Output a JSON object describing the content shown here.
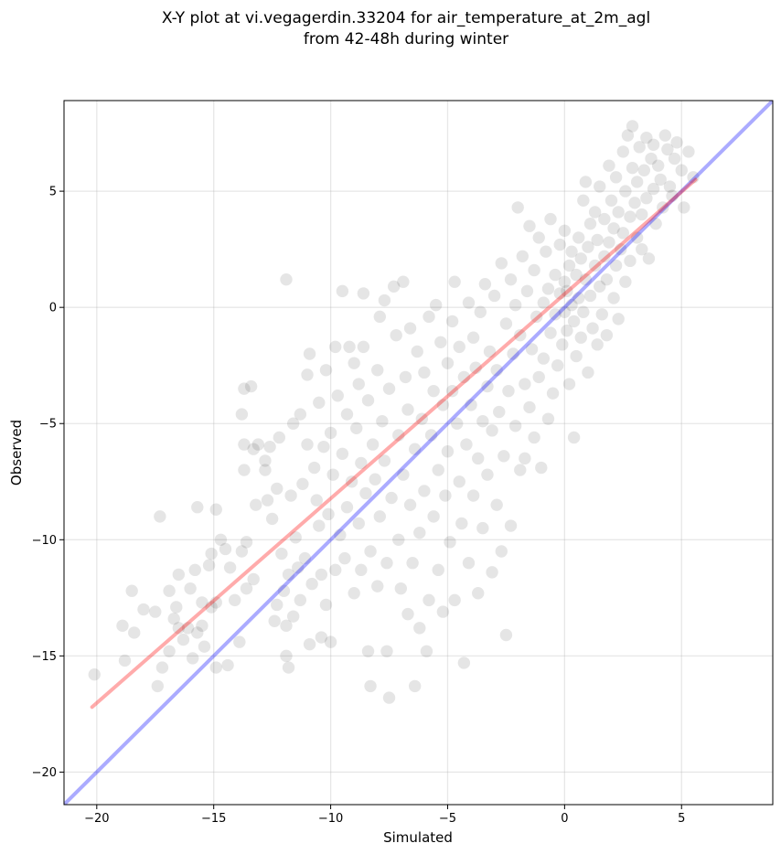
{
  "chart_data": {
    "type": "scatter",
    "title_lines": [
      "X-Y plot at vi.vegagerdin.33204 for air_temperature_at_2m_agl",
      "from 42-48h during winter"
    ],
    "xlabel": "Simulated",
    "ylabel": "Observed",
    "xlim": [
      -21.4,
      8.9
    ],
    "ylim": [
      -21.4,
      8.9
    ],
    "xticks": [
      -20,
      -15,
      -10,
      -5,
      0,
      5
    ],
    "yticks": [
      -20,
      -15,
      -10,
      -5,
      0,
      5
    ],
    "x_tick_labels": [
      "−20",
      "−15",
      "−10",
      "−5",
      "0",
      "5"
    ],
    "y_tick_labels": [
      "−20",
      "−15",
      "−10",
      "−5",
      "0",
      "5"
    ],
    "grid": true,
    "point_color": "#000000",
    "point_alpha": 0.1,
    "reference_line": {
      "x": [
        -21.4,
        8.9
      ],
      "y": [
        -21.4,
        8.9
      ],
      "color": "#0000ff"
    },
    "fit_line": {
      "x": [
        -20.2,
        5.6
      ],
      "y": [
        -17.2,
        5.5
      ],
      "color": "#ff0000"
    },
    "points": [
      [
        -20.1,
        -15.8
      ],
      [
        -18.9,
        -13.7
      ],
      [
        -18.8,
        -15.2
      ],
      [
        -18.5,
        -12.2
      ],
      [
        -18.4,
        -14.0
      ],
      [
        -18.0,
        -13.0
      ],
      [
        -17.5,
        -13.1
      ],
      [
        -17.4,
        -16.3
      ],
      [
        -17.3,
        -9.0
      ],
      [
        -17.2,
        -15.5
      ],
      [
        -16.9,
        -14.8
      ],
      [
        -16.7,
        -13.4
      ],
      [
        -16.9,
        -12.2
      ],
      [
        -16.6,
        -12.9
      ],
      [
        -16.5,
        -13.8
      ],
      [
        -16.5,
        -11.5
      ],
      [
        -16.3,
        -14.3
      ],
      [
        -16.1,
        -13.8
      ],
      [
        -16.0,
        -12.1
      ],
      [
        -15.9,
        -15.1
      ],
      [
        -15.8,
        -11.3
      ],
      [
        -15.7,
        -14.0
      ],
      [
        -15.7,
        -8.6
      ],
      [
        -15.5,
        -13.7
      ],
      [
        -15.5,
        -12.7
      ],
      [
        -15.4,
        -14.6
      ],
      [
        -15.2,
        -11.1
      ],
      [
        -15.1,
        -12.9
      ],
      [
        -15.1,
        -10.6
      ],
      [
        -14.9,
        -12.7
      ],
      [
        -14.9,
        -15.5
      ],
      [
        -14.9,
        -8.7
      ],
      [
        -14.7,
        -10.0
      ],
      [
        -14.5,
        -10.4
      ],
      [
        -14.4,
        -15.4
      ],
      [
        -14.3,
        -11.2
      ],
      [
        -14.1,
        -12.6
      ],
      [
        -13.9,
        -14.4
      ],
      [
        -13.8,
        -4.6
      ],
      [
        -13.8,
        -10.5
      ],
      [
        -13.7,
        -5.9
      ],
      [
        -13.7,
        -7.0
      ],
      [
        -13.7,
        -3.5
      ],
      [
        -13.6,
        -12.1
      ],
      [
        -13.6,
        -10.1
      ],
      [
        -13.4,
        -3.4
      ],
      [
        -13.3,
        -11.7
      ],
      [
        -13.3,
        -6.1
      ],
      [
        -13.2,
        -8.5
      ],
      [
        -13.1,
        -5.9
      ],
      [
        -12.8,
        -6.6
      ],
      [
        -12.8,
        -7.0
      ],
      [
        -12.7,
        -8.3
      ],
      [
        -12.6,
        -6.0
      ],
      [
        -12.5,
        -9.1
      ],
      [
        -12.4,
        -13.5
      ],
      [
        -12.3,
        -12.8
      ],
      [
        -12.3,
        -7.8
      ],
      [
        -12.2,
        -5.6
      ],
      [
        -12.1,
        -10.6
      ],
      [
        -12.0,
        -12.2
      ],
      [
        -11.9,
        -15.0
      ],
      [
        -11.9,
        -13.7
      ],
      [
        -11.9,
        1.2
      ],
      [
        -11.8,
        -15.5
      ],
      [
        -11.8,
        -11.5
      ],
      [
        -11.7,
        -8.1
      ],
      [
        -11.6,
        -13.3
      ],
      [
        -11.6,
        -5.0
      ],
      [
        -11.5,
        -9.9
      ],
      [
        -11.4,
        -11.2
      ],
      [
        -11.3,
        -12.6
      ],
      [
        -11.3,
        -4.6
      ],
      [
        -11.2,
        -7.6
      ],
      [
        -11.1,
        -10.8
      ],
      [
        -11.0,
        -5.9
      ],
      [
        -11.0,
        -2.9
      ],
      [
        -10.9,
        -14.5
      ],
      [
        -10.9,
        -2.0
      ],
      [
        -10.8,
        -11.9
      ],
      [
        -10.7,
        -6.9
      ],
      [
        -10.6,
        -8.3
      ],
      [
        -10.5,
        -4.1
      ],
      [
        -10.5,
        -9.4
      ],
      [
        -10.4,
        -11.5
      ],
      [
        -10.4,
        -14.2
      ],
      [
        -10.3,
        -6.0
      ],
      [
        -10.2,
        -2.7
      ],
      [
        -10.2,
        -12.8
      ],
      [
        -10.1,
        -8.9
      ],
      [
        -10.0,
        -5.4
      ],
      [
        -10.0,
        -14.4
      ],
      [
        -9.9,
        -7.2
      ],
      [
        -9.8,
        -11.3
      ],
      [
        -9.8,
        -1.7
      ],
      [
        -9.7,
        -3.8
      ],
      [
        -9.6,
        -9.8
      ],
      [
        -9.5,
        -6.3
      ],
      [
        -9.5,
        0.7
      ],
      [
        -9.4,
        -10.8
      ],
      [
        -9.3,
        -4.6
      ],
      [
        -9.3,
        -8.6
      ],
      [
        -9.2,
        -1.7
      ],
      [
        -9.1,
        -7.5
      ],
      [
        -9.0,
        -12.3
      ],
      [
        -9.0,
        -2.4
      ],
      [
        -8.9,
        -5.2
      ],
      [
        -8.8,
        -9.3
      ],
      [
        -8.8,
        -3.3
      ],
      [
        -8.7,
        -11.3
      ],
      [
        -8.7,
        -6.7
      ],
      [
        -8.6,
        0.6
      ],
      [
        -8.6,
        -1.7
      ],
      [
        -8.5,
        -8.0
      ],
      [
        -8.4,
        -14.8
      ],
      [
        -8.4,
        -4.0
      ],
      [
        -8.3,
        -10.5
      ],
      [
        -8.3,
        -16.3
      ],
      [
        -8.2,
        -5.9
      ],
      [
        -8.1,
        -7.4
      ],
      [
        -8.0,
        -2.7
      ],
      [
        -8.0,
        -12.0
      ],
      [
        -7.9,
        -9.0
      ],
      [
        -7.9,
        -0.4
      ],
      [
        -7.8,
        -4.9
      ],
      [
        -7.7,
        -6.6
      ],
      [
        -7.7,
        0.3
      ],
      [
        -7.6,
        -11.0
      ],
      [
        -7.6,
        -14.8
      ],
      [
        -7.5,
        -3.5
      ],
      [
        -7.5,
        -16.8
      ],
      [
        -7.4,
        -8.2
      ],
      [
        -7.3,
        0.9
      ],
      [
        -7.2,
        -1.2
      ],
      [
        -7.1,
        -5.5
      ],
      [
        -7.1,
        -10.0
      ],
      [
        -7.0,
        -12.1
      ],
      [
        -6.9,
        -7.2
      ],
      [
        -6.9,
        1.1
      ],
      [
        -6.8,
        -3.0
      ],
      [
        -6.7,
        -13.2
      ],
      [
        -6.7,
        -4.4
      ],
      [
        -6.6,
        -8.5
      ],
      [
        -6.6,
        -0.9
      ],
      [
        -6.5,
        -11.0
      ],
      [
        -6.4,
        -6.1
      ],
      [
        -6.4,
        -16.3
      ],
      [
        -6.3,
        -1.9
      ],
      [
        -6.2,
        -9.7
      ],
      [
        -6.2,
        -13.8
      ],
      [
        -6.1,
        -4.8
      ],
      [
        -6.0,
        -2.8
      ],
      [
        -6.0,
        -7.9
      ],
      [
        -5.9,
        -14.8
      ],
      [
        -5.8,
        -0.4
      ],
      [
        -5.8,
        -12.6
      ],
      [
        -5.7,
        -5.5
      ],
      [
        -5.6,
        -3.6
      ],
      [
        -5.6,
        -9.0
      ],
      [
        -5.5,
        0.1
      ],
      [
        -5.4,
        -7.0
      ],
      [
        -5.4,
        -11.3
      ],
      [
        -5.3,
        -1.5
      ],
      [
        -5.2,
        -4.2
      ],
      [
        -5.2,
        -13.1
      ],
      [
        -5.1,
        -8.1
      ],
      [
        -5.0,
        -2.4
      ],
      [
        -5.0,
        -6.2
      ],
      [
        -4.9,
        -10.1
      ],
      [
        -4.8,
        -0.6
      ],
      [
        -4.8,
        -3.6
      ],
      [
        -4.7,
        -12.6
      ],
      [
        -4.7,
        1.1
      ],
      [
        -4.6,
        -5.0
      ],
      [
        -4.5,
        -7.5
      ],
      [
        -4.5,
        -1.7
      ],
      [
        -4.4,
        -9.3
      ],
      [
        -4.3,
        -3.0
      ],
      [
        -4.3,
        -15.3
      ],
      [
        -4.2,
        -5.9
      ],
      [
        -4.1,
        0.2
      ],
      [
        -4.1,
        -11.0
      ],
      [
        -4.0,
        -4.2
      ],
      [
        -3.9,
        -8.1
      ],
      [
        -3.9,
        -1.3
      ],
      [
        -3.8,
        -2.6
      ],
      [
        -3.7,
        -12.3
      ],
      [
        -3.7,
        -6.5
      ],
      [
        -3.6,
        -0.2
      ],
      [
        -3.5,
        -4.9
      ],
      [
        -3.5,
        -9.5
      ],
      [
        -3.4,
        1.0
      ],
      [
        -3.3,
        -3.4
      ],
      [
        -3.3,
        -7.2
      ],
      [
        -3.2,
        -1.9
      ],
      [
        -3.1,
        -11.4
      ],
      [
        -3.1,
        -5.3
      ],
      [
        -3.0,
        0.5
      ],
      [
        -2.9,
        -8.5
      ],
      [
        -2.9,
        -2.7
      ],
      [
        -2.8,
        -4.5
      ],
      [
        -2.7,
        1.9
      ],
      [
        -2.7,
        -10.5
      ],
      [
        -2.6,
        -6.4
      ],
      [
        -2.5,
        -0.7
      ],
      [
        -2.5,
        -14.1
      ],
      [
        -2.4,
        -3.6
      ],
      [
        -2.3,
        1.2
      ],
      [
        -2.3,
        -9.4
      ],
      [
        -2.2,
        -2.0
      ],
      [
        -2.1,
        -5.1
      ],
      [
        -2.1,
        0.1
      ],
      [
        -2.0,
        4.3
      ],
      [
        -1.9,
        -7.0
      ],
      [
        -1.9,
        -1.2
      ],
      [
        -1.8,
        2.2
      ],
      [
        -1.7,
        -3.3
      ],
      [
        -1.7,
        -6.5
      ],
      [
        -1.6,
        0.7
      ],
      [
        -1.5,
        -4.3
      ],
      [
        -1.5,
        3.5
      ],
      [
        -1.4,
        -1.8
      ],
      [
        -1.3,
        -5.6
      ],
      [
        -1.3,
        1.6
      ],
      [
        -1.2,
        -0.4
      ],
      [
        -1.1,
        -3.0
      ],
      [
        -1.1,
        3.0
      ],
      [
        -1.0,
        -6.9
      ],
      [
        -0.9,
        0.2
      ],
      [
        -0.9,
        -2.2
      ],
      [
        -0.8,
        2.4
      ],
      [
        -0.7,
        -4.8
      ],
      [
        -0.7,
        0.8
      ],
      [
        -0.6,
        -1.1
      ],
      [
        -0.6,
        3.8
      ],
      [
        -0.5,
        -3.7
      ],
      [
        -0.4,
        1.4
      ],
      [
        -0.4,
        -0.3
      ],
      [
        -0.3,
        -2.5
      ],
      [
        -0.2,
        2.7
      ],
      [
        -0.2,
        0.6
      ],
      [
        -0.1,
        -1.6
      ],
      [
        0.0,
        1.1
      ],
      [
        0.0,
        -0.2
      ],
      [
        0.0,
        3.3
      ],
      [
        0.1,
        0.7
      ],
      [
        0.1,
        -1.0
      ],
      [
        0.2,
        1.8
      ],
      [
        0.2,
        -3.3
      ],
      [
        0.3,
        0.1
      ],
      [
        0.3,
        2.4
      ],
      [
        0.4,
        -0.6
      ],
      [
        0.4,
        -5.6
      ],
      [
        0.5,
        1.4
      ],
      [
        0.5,
        -2.1
      ],
      [
        0.6,
        3.0
      ],
      [
        0.6,
        0.4
      ],
      [
        0.7,
        -1.3
      ],
      [
        0.7,
        2.1
      ],
      [
        0.8,
        4.6
      ],
      [
        0.8,
        -0.2
      ],
      [
        0.9,
        1.2
      ],
      [
        0.9,
        5.4
      ],
      [
        1.0,
        -2.8
      ],
      [
        1.0,
        2.6
      ],
      [
        1.1,
        0.5
      ],
      [
        1.1,
        3.6
      ],
      [
        1.2,
        -0.9
      ],
      [
        1.3,
        1.8
      ],
      [
        1.3,
        4.1
      ],
      [
        1.4,
        -1.6
      ],
      [
        1.4,
        2.9
      ],
      [
        1.5,
        0.9
      ],
      [
        1.5,
        5.2
      ],
      [
        1.6,
        -0.3
      ],
      [
        1.7,
        2.2
      ],
      [
        1.7,
        3.8
      ],
      [
        1.8,
        1.2
      ],
      [
        1.8,
        -1.2
      ],
      [
        1.9,
        6.1
      ],
      [
        1.9,
        2.8
      ],
      [
        2.0,
        4.6
      ],
      [
        2.1,
        0.4
      ],
      [
        2.1,
        3.4
      ],
      [
        2.2,
        5.6
      ],
      [
        2.2,
        1.8
      ],
      [
        2.3,
        -0.5
      ],
      [
        2.3,
        4.1
      ],
      [
        2.4,
        2.5
      ],
      [
        2.5,
        6.7
      ],
      [
        2.5,
        3.2
      ],
      [
        2.6,
        1.1
      ],
      [
        2.6,
        5.0
      ],
      [
        2.7,
        7.4
      ],
      [
        2.8,
        3.9
      ],
      [
        2.8,
        2.0
      ],
      [
        2.9,
        6.0
      ],
      [
        2.9,
        7.8
      ],
      [
        3.0,
        4.5
      ],
      [
        3.1,
        3.0
      ],
      [
        3.1,
        5.4
      ],
      [
        3.2,
        6.9
      ],
      [
        3.3,
        4.0
      ],
      [
        3.3,
        2.5
      ],
      [
        3.4,
        5.9
      ],
      [
        3.5,
        7.3
      ],
      [
        3.5,
        4.7
      ],
      [
        3.6,
        2.1
      ],
      [
        3.7,
        6.4
      ],
      [
        3.8,
        5.1
      ],
      [
        3.8,
        7.0
      ],
      [
        3.9,
        3.6
      ],
      [
        4.0,
        6.1
      ],
      [
        4.1,
        5.5
      ],
      [
        4.2,
        4.3
      ],
      [
        4.3,
        7.4
      ],
      [
        4.4,
        6.8
      ],
      [
        4.5,
        5.2
      ],
      [
        4.6,
        4.8
      ],
      [
        4.7,
        6.4
      ],
      [
        4.8,
        7.1
      ],
      [
        5.0,
        5.9
      ],
      [
        5.1,
        4.3
      ],
      [
        5.3,
        6.7
      ],
      [
        5.5,
        5.6
      ]
    ]
  }
}
